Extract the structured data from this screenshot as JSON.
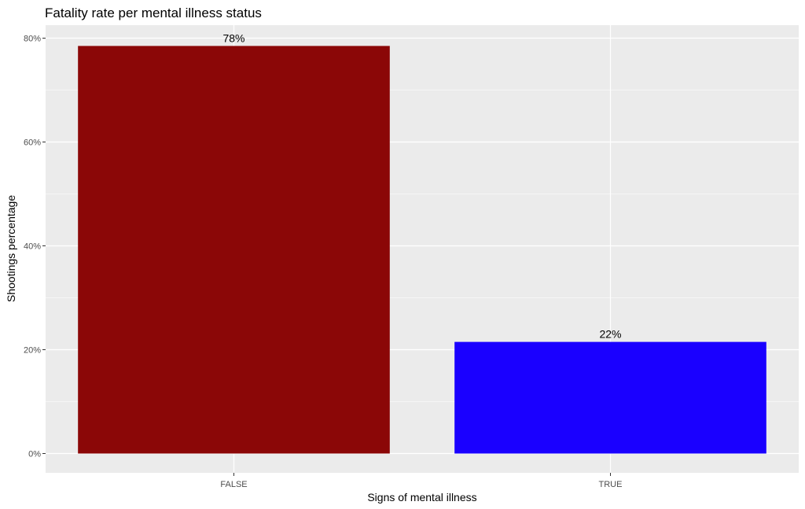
{
  "chart_data": {
    "type": "bar",
    "title": "Fatality rate per mental illness status",
    "xlabel": "Signs of mental illness",
    "ylabel": "Shootings percentage",
    "categories": [
      "FALSE",
      "TRUE"
    ],
    "values": [
      78.5,
      21.5
    ],
    "value_labels": [
      "78%",
      "22%"
    ],
    "bar_colors": [
      "#8b0707",
      "#1a00ff"
    ],
    "ylim": [
      0,
      84
    ],
    "y_ticks": [
      0,
      20,
      40,
      60,
      80
    ],
    "y_tick_labels": [
      "0%",
      "20%",
      "40%",
      "60%",
      "80%"
    ],
    "grid": true,
    "legend": "none",
    "panel_background": "#ebebeb",
    "gridline_color": "#ffffff"
  }
}
